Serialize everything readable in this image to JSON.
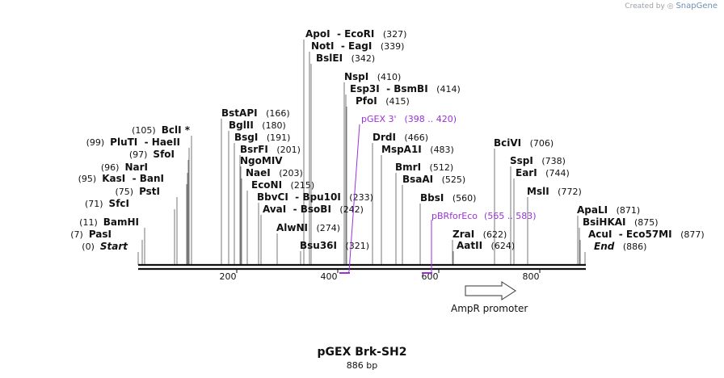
{
  "header": {
    "credit_prefix": "Created by",
    "credit_brand": "SnapGene"
  },
  "map": {
    "name": "pGEX Brk-SH2",
    "length_label": "886 bp",
    "length_bp": 886,
    "ruler_ticks": [
      "200",
      "400",
      "600",
      "800"
    ],
    "colors": {
      "feature": "#9b30d9",
      "line": "#111111",
      "label": "#111111"
    }
  },
  "enzymes": [
    {
      "name": "Start",
      "pos": "(0)",
      "kind": "end"
    },
    {
      "name": "PasI",
      "pos": "(7)"
    },
    {
      "name": "BamHI",
      "pos": "(11)"
    },
    {
      "name": "SfcI",
      "pos": "(71)"
    },
    {
      "name": "PstI",
      "pos": "(75)"
    },
    {
      "name": "KasI",
      "alt": "BanI",
      "pos": "(95)"
    },
    {
      "name": "NarI",
      "pos": "(96)"
    },
    {
      "name": "SfoI",
      "pos": "(97)"
    },
    {
      "name": "PluTI",
      "alt": "HaeII",
      "pos": "(99)"
    },
    {
      "name": "BclI",
      "pos": "(105)",
      "star": "*"
    },
    {
      "name": "BstAPI",
      "pos": "(166)"
    },
    {
      "name": "BglII",
      "pos": "(180)"
    },
    {
      "name": "BsgI",
      "pos": "(191)"
    },
    {
      "name": "BsrFI",
      "pos": "(201)"
    },
    {
      "name": "NgoMIV",
      "pos": ""
    },
    {
      "name": "NaeI",
      "pos": "(203)"
    },
    {
      "name": "EcoNI",
      "pos": "(215)"
    },
    {
      "name": "BbvCI",
      "alt": "Bpu10I",
      "pos": "(233)"
    },
    {
      "name": "AvaI",
      "alt": "BsoBI",
      "pos": "(242)"
    },
    {
      "name": "AlwNI",
      "pos": "(274)"
    },
    {
      "name": "Bsu36I",
      "pos": "(321)"
    },
    {
      "name": "ApoI",
      "alt": "EcoRI",
      "pos": "(327)"
    },
    {
      "name": "NotI",
      "alt": "EagI",
      "pos": "(339)"
    },
    {
      "name": "BslEI",
      "pos": "(342)"
    },
    {
      "name": "NspI",
      "pos": "(410)"
    },
    {
      "name": "Esp3I",
      "alt": "BsmBI",
      "pos": "(414)"
    },
    {
      "name": "PfoI",
      "pos": "(415)"
    },
    {
      "name": "DrdI",
      "pos": "(466)"
    },
    {
      "name": "MspA1I",
      "pos": "(483)"
    },
    {
      "name": "BmrI",
      "pos": "(512)"
    },
    {
      "name": "BsaAI",
      "pos": "(525)"
    },
    {
      "name": "BbsI",
      "pos": "(560)"
    },
    {
      "name": "ZraI",
      "pos": "(622)"
    },
    {
      "name": "AatII",
      "pos": "(624)"
    },
    {
      "name": "BciVI",
      "pos": "(706)"
    },
    {
      "name": "SspI",
      "pos": "(738)"
    },
    {
      "name": "EarI",
      "pos": "(744)"
    },
    {
      "name": "MslI",
      "pos": "(772)"
    },
    {
      "name": "ApaLI",
      "pos": "(871)"
    },
    {
      "name": "BsiHKAI",
      "pos": "(875)"
    },
    {
      "name": "AcuI",
      "alt": "Eco57MI",
      "pos": "(877)"
    },
    {
      "name": "End",
      "pos": "(886)",
      "kind": "end"
    }
  ],
  "features": [
    {
      "name": "pGEX 3'",
      "range": "(398 .. 420)"
    },
    {
      "name": "pBRforEco",
      "range": "(565 .. 583)"
    },
    {
      "name": "AmpR promoter",
      "range": ""
    }
  ]
}
